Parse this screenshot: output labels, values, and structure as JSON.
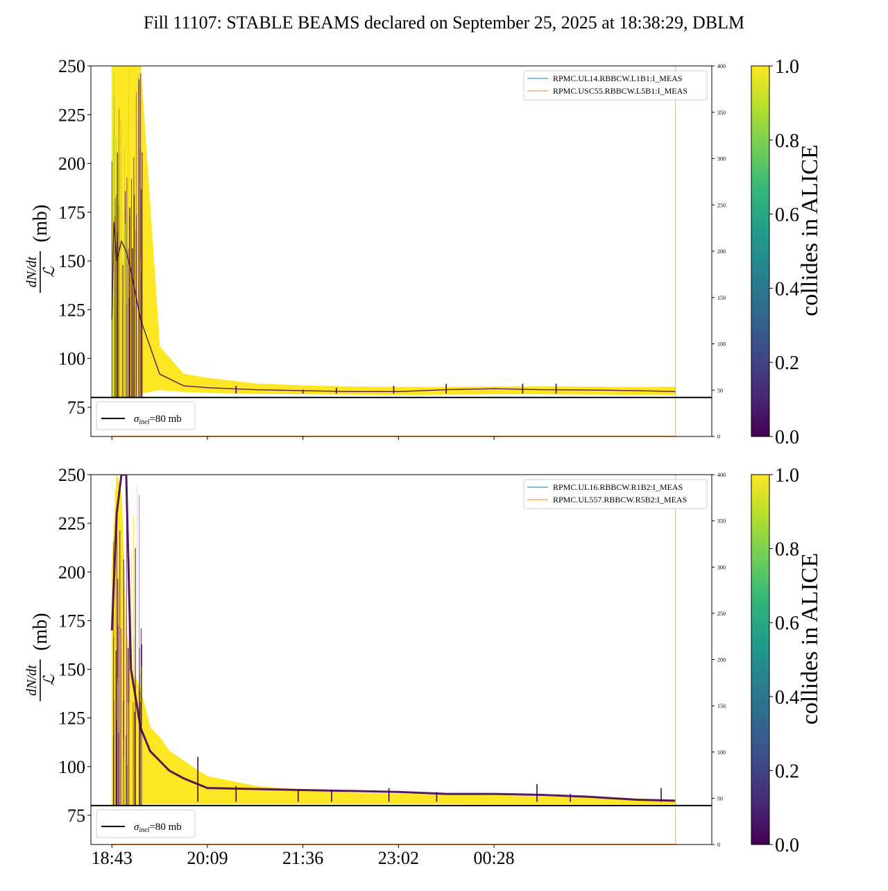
{
  "title": "Fill 11107: STABLE BEAMS declared on September 25, 2025 at 18:38:29, DBLM",
  "colors": {
    "viridis": [
      "#440154",
      "#482878",
      "#3e4989",
      "#31688e",
      "#26828e",
      "#1f9e89",
      "#35b779",
      "#6ece58",
      "#b5de2b",
      "#fde725"
    ],
    "rpmc_b1": "#1f77b4",
    "rpmc_b2": "#ff7f0e",
    "reference_line": "#000000"
  },
  "chart_data": [
    {
      "type": "line",
      "name": "beam1-panel",
      "ylabel_numerator": "dN/dt",
      "ylabel_denominator": "ℒ",
      "ylabel_unit": "(mb)",
      "ylim": [
        60,
        250
      ],
      "yticks": [
        75,
        100,
        125,
        150,
        175,
        200,
        225,
        250
      ],
      "secondary_ylim": [
        0,
        400
      ],
      "secondary_yticks": [
        0,
        50,
        100,
        150,
        200,
        250,
        300,
        350,
        400
      ],
      "xticks": [
        "18:43",
        "20:09",
        "21:36",
        "23:02",
        "00:28"
      ],
      "xtick_labels_visible": false,
      "x": [
        0,
        0.02,
        0.05,
        0.1,
        0.15,
        0.2,
        0.3,
        0.5,
        0.75,
        1.0,
        1.5,
        2.0,
        2.5,
        3.0,
        3.5,
        4.0,
        4.5,
        5.0,
        5.5,
        5.9
      ],
      "series": [
        {
          "label": "collides=1.0 upper",
          "values": [
            250,
            250,
            250,
            250,
            250,
            250,
            250,
            106,
            92,
            90,
            87,
            86,
            85.5,
            85.2,
            85.3,
            85.5,
            85.6,
            85.4,
            85.2,
            85.4
          ]
        },
        {
          "label": "collides=1.0 lower",
          "values": [
            80,
            80,
            80,
            80,
            80,
            80,
            82,
            84,
            83,
            82.5,
            82,
            81.8,
            81.6,
            81.5,
            81.6,
            81.8,
            81.8,
            81.6,
            81.5,
            81.5
          ]
        },
        {
          "label": "collides=0.0 core",
          "values": [
            120,
            170,
            150,
            160,
            155,
            145,
            120,
            92,
            86,
            85,
            84,
            83.5,
            83,
            83,
            84,
            84.5,
            84,
            83.8,
            83.5,
            83
          ]
        }
      ],
      "spikes": [
        {
          "x": 1.3,
          "value": 86
        },
        {
          "x": 2.0,
          "value": 84
        },
        {
          "x": 2.35,
          "value": 85
        },
        {
          "x": 2.95,
          "value": 86
        },
        {
          "x": 3.5,
          "value": 87
        },
        {
          "x": 4.3,
          "value": 87
        },
        {
          "x": 4.65,
          "value": 87
        }
      ],
      "rpmc_series": [
        {
          "name": "RPMC.UL14.RBBCW.L1B1:I_MEAS",
          "color": "#1f77b4",
          "values": [
            0,
            0
          ]
        },
        {
          "name": "RPMC.USC55.RBBCW.L5B1:I_MEAS",
          "color": "#ff7f0e",
          "values": [
            0,
            0
          ]
        }
      ],
      "reference_line": {
        "value": 80,
        "label": "σ",
        "label_subscript": "inel",
        "label_suffix": "=80 mb"
      },
      "vertical_marker_x": 5.9,
      "legend": "top-right",
      "colorbar": {
        "label": "collides in ALICE",
        "range": [
          0.0,
          1.0
        ],
        "ticks": [
          "0.0",
          "0.2",
          "0.4",
          "0.6",
          "0.8",
          "1.0"
        ]
      }
    },
    {
      "type": "line",
      "name": "beam2-panel",
      "ylabel_numerator": "dN/dt",
      "ylabel_denominator": "ℒ",
      "ylabel_unit": "(mb)",
      "ylim": [
        60,
        250
      ],
      "yticks": [
        75,
        100,
        125,
        150,
        175,
        200,
        225,
        250
      ],
      "secondary_ylim": [
        0,
        400
      ],
      "secondary_yticks": [
        0,
        50,
        100,
        150,
        200,
        250,
        300,
        350,
        400
      ],
      "xticks": [
        "18:43",
        "20:09",
        "21:36",
        "23:02",
        "00:28"
      ],
      "xtick_labels_visible": true,
      "x": [
        0,
        0.05,
        0.1,
        0.15,
        0.2,
        0.3,
        0.4,
        0.5,
        0.6,
        0.75,
        0.9,
        1.0,
        1.5,
        2.0,
        2.5,
        3.0,
        3.5,
        4.0,
        4.5,
        5.0,
        5.5,
        5.9
      ],
      "series": [
        {
          "label": "collides=1.0 upper",
          "values": [
            200,
            250,
            240,
            170,
            150,
            140,
            120,
            115,
            108,
            103,
            98,
            95,
            90,
            88,
            86.5,
            86,
            85.5,
            85.2,
            84.5,
            84,
            83.5,
            83
          ]
        },
        {
          "label": "collides=1.0 lower",
          "values": [
            80,
            80,
            80,
            80,
            80,
            81,
            81,
            81,
            81,
            81,
            81,
            81,
            81,
            81,
            81,
            81,
            81,
            80.8,
            80.8,
            80.8,
            80.8,
            80.8
          ]
        },
        {
          "label": "collides=0.0 upper",
          "values": [
            170,
            230,
            250,
            250,
            150,
            120,
            108,
            103,
            98,
            94,
            91,
            89,
            88.5,
            88,
            87.5,
            87,
            86,
            86,
            85.5,
            84.5,
            83,
            82.5
          ]
        }
      ],
      "spikes": [
        {
          "x": 0.9,
          "value": 105
        },
        {
          "x": 1.3,
          "value": 90
        },
        {
          "x": 1.95,
          "value": 88
        },
        {
          "x": 2.3,
          "value": 88
        },
        {
          "x": 2.9,
          "value": 89
        },
        {
          "x": 3.4,
          "value": 87
        },
        {
          "x": 4.45,
          "value": 91
        },
        {
          "x": 4.8,
          "value": 86
        },
        {
          "x": 5.75,
          "value": 89
        }
      ],
      "rpmc_series": [
        {
          "name": "RPMC.UL16.RBBCW.R1B2:I_MEAS",
          "color": "#1f77b4",
          "values": [
            0,
            0
          ]
        },
        {
          "name": "RPMC.UL557.RBBCW.R5B2:I_MEAS",
          "color": "#ff7f0e",
          "values": [
            0,
            0
          ]
        }
      ],
      "reference_line": {
        "value": 80,
        "label": "σ",
        "label_subscript": "inel",
        "label_suffix": "=80 mb"
      },
      "vertical_marker_x": 5.9,
      "legend": "top-right",
      "colorbar": {
        "label": "collides in ALICE",
        "range": [
          0.0,
          1.0
        ],
        "ticks": [
          "0.0",
          "0.2",
          "0.4",
          "0.6",
          "0.8",
          "1.0"
        ]
      }
    }
  ]
}
